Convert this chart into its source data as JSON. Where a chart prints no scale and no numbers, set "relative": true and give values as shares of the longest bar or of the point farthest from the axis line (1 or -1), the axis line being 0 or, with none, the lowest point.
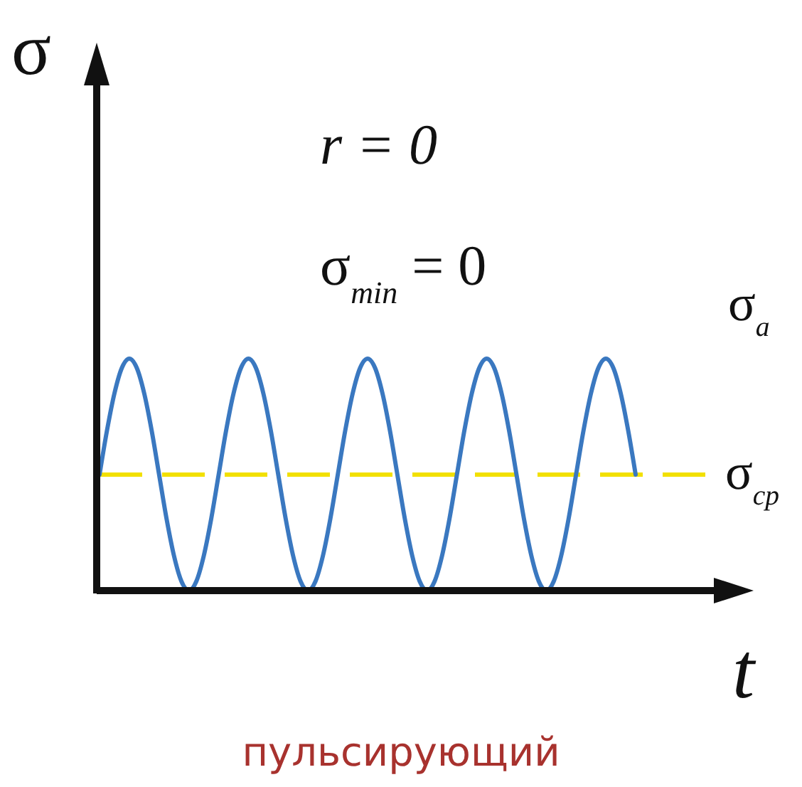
{
  "chart_data": {
    "type": "line",
    "relative": true,
    "title": "пульсирующий",
    "xlabel": "t",
    "ylabel": "σ",
    "annotations": [
      "r = 0",
      "σ$_{min}$ = 0",
      "σ$_{a}$"
    ],
    "categories": [
      null,
      null,
      null,
      null,
      null,
      null,
      null,
      null,
      null,
      null,
      null,
      null,
      null,
      null,
      null,
      null,
      null,
      null,
      null,
      null,
      null,
      null,
      null,
      null,
      null,
      null,
      null,
      null,
      null,
      null,
      null,
      null,
      null,
      null,
      null,
      null,
      null,
      null,
      null,
      null,
      null,
      null,
      null,
      null,
      null,
      null,
      null,
      null,
      null,
      null,
      null,
      null,
      null,
      null,
      null,
      null,
      null,
      null,
      null,
      null,
      null,
      null,
      null,
      null,
      null,
      null,
      null,
      null,
      null,
      null,
      null,
      null,
      null
    ],
    "series": [
      {
        "color": "#3a78c0",
        "values": [
          0.5,
          0.69,
          0.85,
          0.96,
          1,
          0.96,
          0.85,
          0.69,
          0.5,
          0.31,
          0.15,
          0.04,
          0,
          0.04,
          0.15,
          0.31,
          0.5,
          0.69,
          0.85,
          0.96,
          1,
          0.96,
          0.85,
          0.69,
          0.5,
          0.31,
          0.15,
          0.04,
          0,
          0.04,
          0.15,
          0.31,
          0.5,
          0.69,
          0.85,
          0.96,
          1,
          0.96,
          0.85,
          0.69,
          0.5,
          0.31,
          0.15,
          0.04,
          0,
          0.04,
          0.15,
          0.31,
          0.5,
          0.69,
          0.85,
          0.96,
          1,
          0.96,
          0.85,
          0.69,
          0.5,
          0.31,
          0.15,
          0.04,
          0,
          0.04,
          0.15,
          0.31,
          0.5,
          0.69,
          0.85,
          0.96,
          1,
          0.96,
          0.85,
          0.69,
          0.5
        ]
      }
    ],
    "ref_lines": [
      {
        "axis": "y",
        "value": 0.5,
        "label": "σ$_{cp}$",
        "color": "#f2e000",
        "line_style": "dashed"
      }
    ]
  }
}
